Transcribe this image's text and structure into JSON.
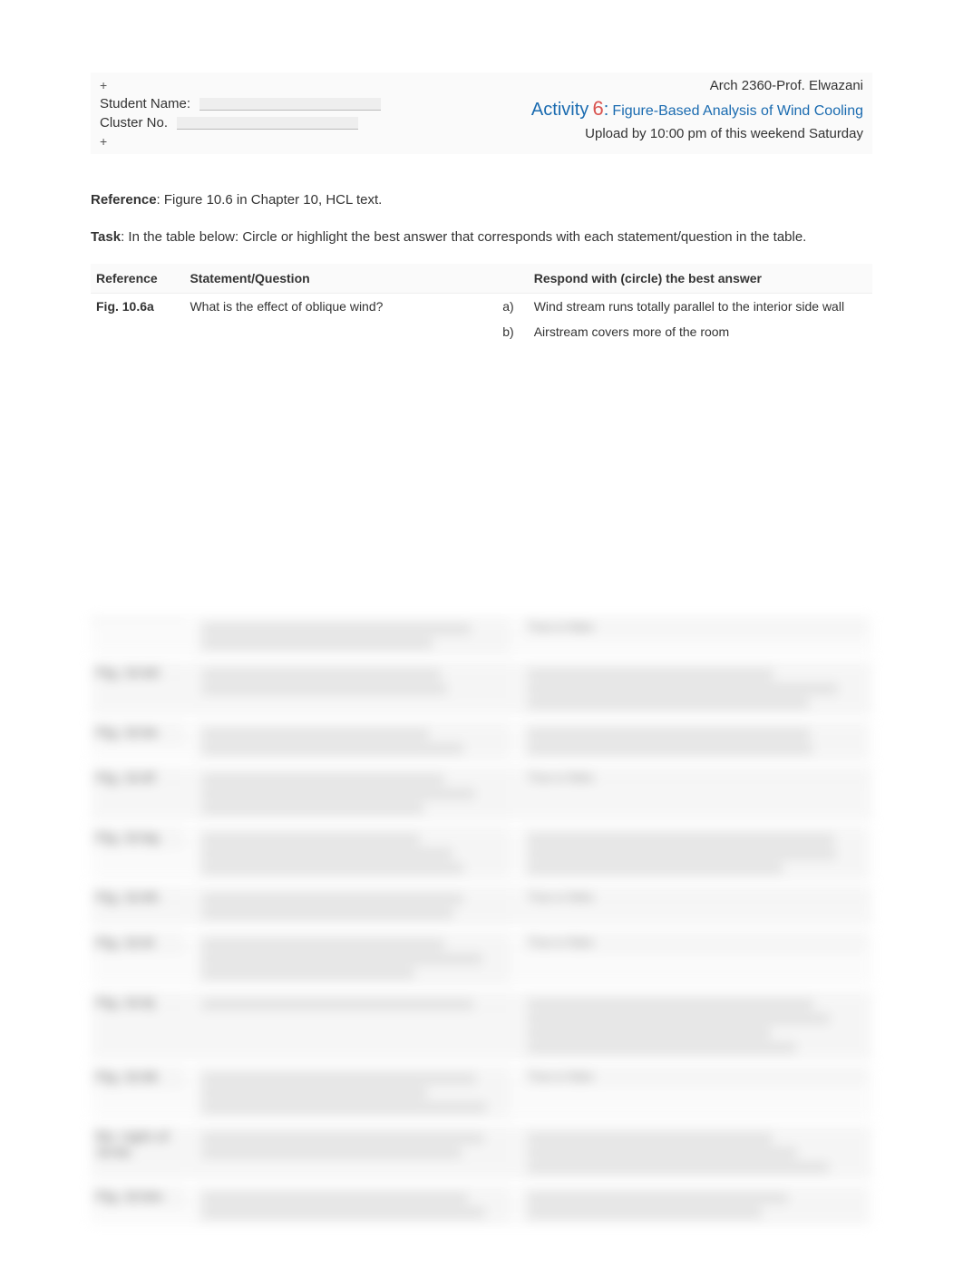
{
  "header": {
    "plus": "+",
    "student_label": "Student Name:",
    "cluster_label": "Cluster No.",
    "course": "Arch 2360-Prof. Elwazani",
    "activity_word": "Activity",
    "activity_num": "6",
    "activity_colon": ":",
    "activity_sub": "Figure-Based Analysis of Wind Cooling",
    "deadline": "Upload by 10:00 pm of this weekend Saturday"
  },
  "body": {
    "reference_label": "Reference",
    "reference_text": ": Figure 10.6 in Chapter 10, HCL text.",
    "task_label": "Task",
    "task_text": ": In the table below: Circle or highlight the best answer that corresponds with each statement/question in the table."
  },
  "table": {
    "headers": {
      "ref": "Reference",
      "stmt": "Statement/Question",
      "ans": "Respond with (circle) the best answer"
    },
    "rows": [
      {
        "ref": "Fig. 10.6a",
        "stmt": "What is the effect of oblique wind?",
        "opts": [
          {
            "k": "a)",
            "v": "Wind stream runs totally parallel to the interior side wall"
          },
          {
            "k": "b)",
            "v": "Airstream covers more of the room"
          }
        ]
      }
    ]
  },
  "blurred": {
    "rows": [
      {
        "ref": "",
        "stmt_lines": 2,
        "ans": "True or false",
        "alt": false
      },
      {
        "ref": "Fig. 10.6d",
        "stmt_lines": 2,
        "ans_lines": 3,
        "alt": true
      },
      {
        "ref": "Fig. 10.6e",
        "stmt_lines": 2,
        "ans_lines": 2,
        "alt": false
      },
      {
        "ref": "Fig. 10.6f",
        "stmt_lines": 3,
        "ans": "True or false",
        "alt": true
      },
      {
        "ref": "Fig. 10.6g",
        "stmt_lines": 3,
        "ans_lines": 3,
        "alt": false
      },
      {
        "ref": "Fig. 10.6h",
        "stmt_lines": 2,
        "ans": "True or false",
        "alt": true
      },
      {
        "ref": "Fig. 10.6i",
        "stmt_lines": 3,
        "ans": "True or false",
        "alt": false
      },
      {
        "ref": "Fig. 10.6j",
        "stmt_lines": 1,
        "ans_lines": 4,
        "alt": true
      },
      {
        "ref": "Fig. 10.6k",
        "stmt_lines": 3,
        "ans": "True or false",
        "alt": false
      },
      {
        "ref": "Re: right of 10.6a",
        "stmt_lines": 2,
        "ans_lines": 3,
        "alt": true
      },
      {
        "ref": "Fig. 10.6m",
        "stmt_lines": 2,
        "ans_lines": 2,
        "alt": false
      }
    ]
  },
  "colors": {
    "accent_blue": "#1a6bb0",
    "accent_red": "#d9534f"
  }
}
